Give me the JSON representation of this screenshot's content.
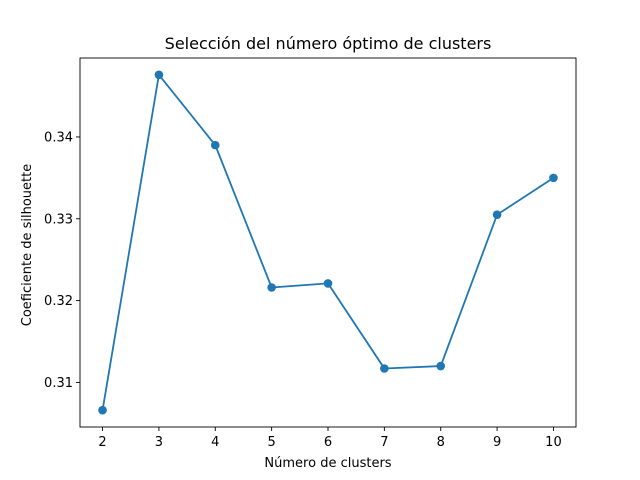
{
  "chart_data": {
    "type": "line",
    "title": "Selección del número óptimo de clusters",
    "xlabel": "Número de clusters",
    "ylabel": "Coeficiente de silhouette",
    "x": [
      2,
      3,
      4,
      5,
      6,
      7,
      8,
      9,
      10
    ],
    "series": [
      {
        "values": [
          0.3066,
          0.3476,
          0.339,
          0.3216,
          0.3221,
          0.3117,
          0.312,
          0.3305,
          0.335
        ],
        "color": "#1f77b4",
        "marker": "circle"
      }
    ],
    "xticks": [
      "2",
      "3",
      "4",
      "5",
      "6",
      "7",
      "8",
      "9",
      "10"
    ],
    "yticks": [
      "0.31",
      "0.32",
      "0.33",
      "0.34"
    ],
    "ytick_values": [
      0.31,
      0.32,
      0.33,
      0.34
    ],
    "xlim": [
      1.6,
      10.4
    ],
    "ylim": [
      0.30455,
      0.34965
    ],
    "grid": false,
    "legend": "none"
  }
}
